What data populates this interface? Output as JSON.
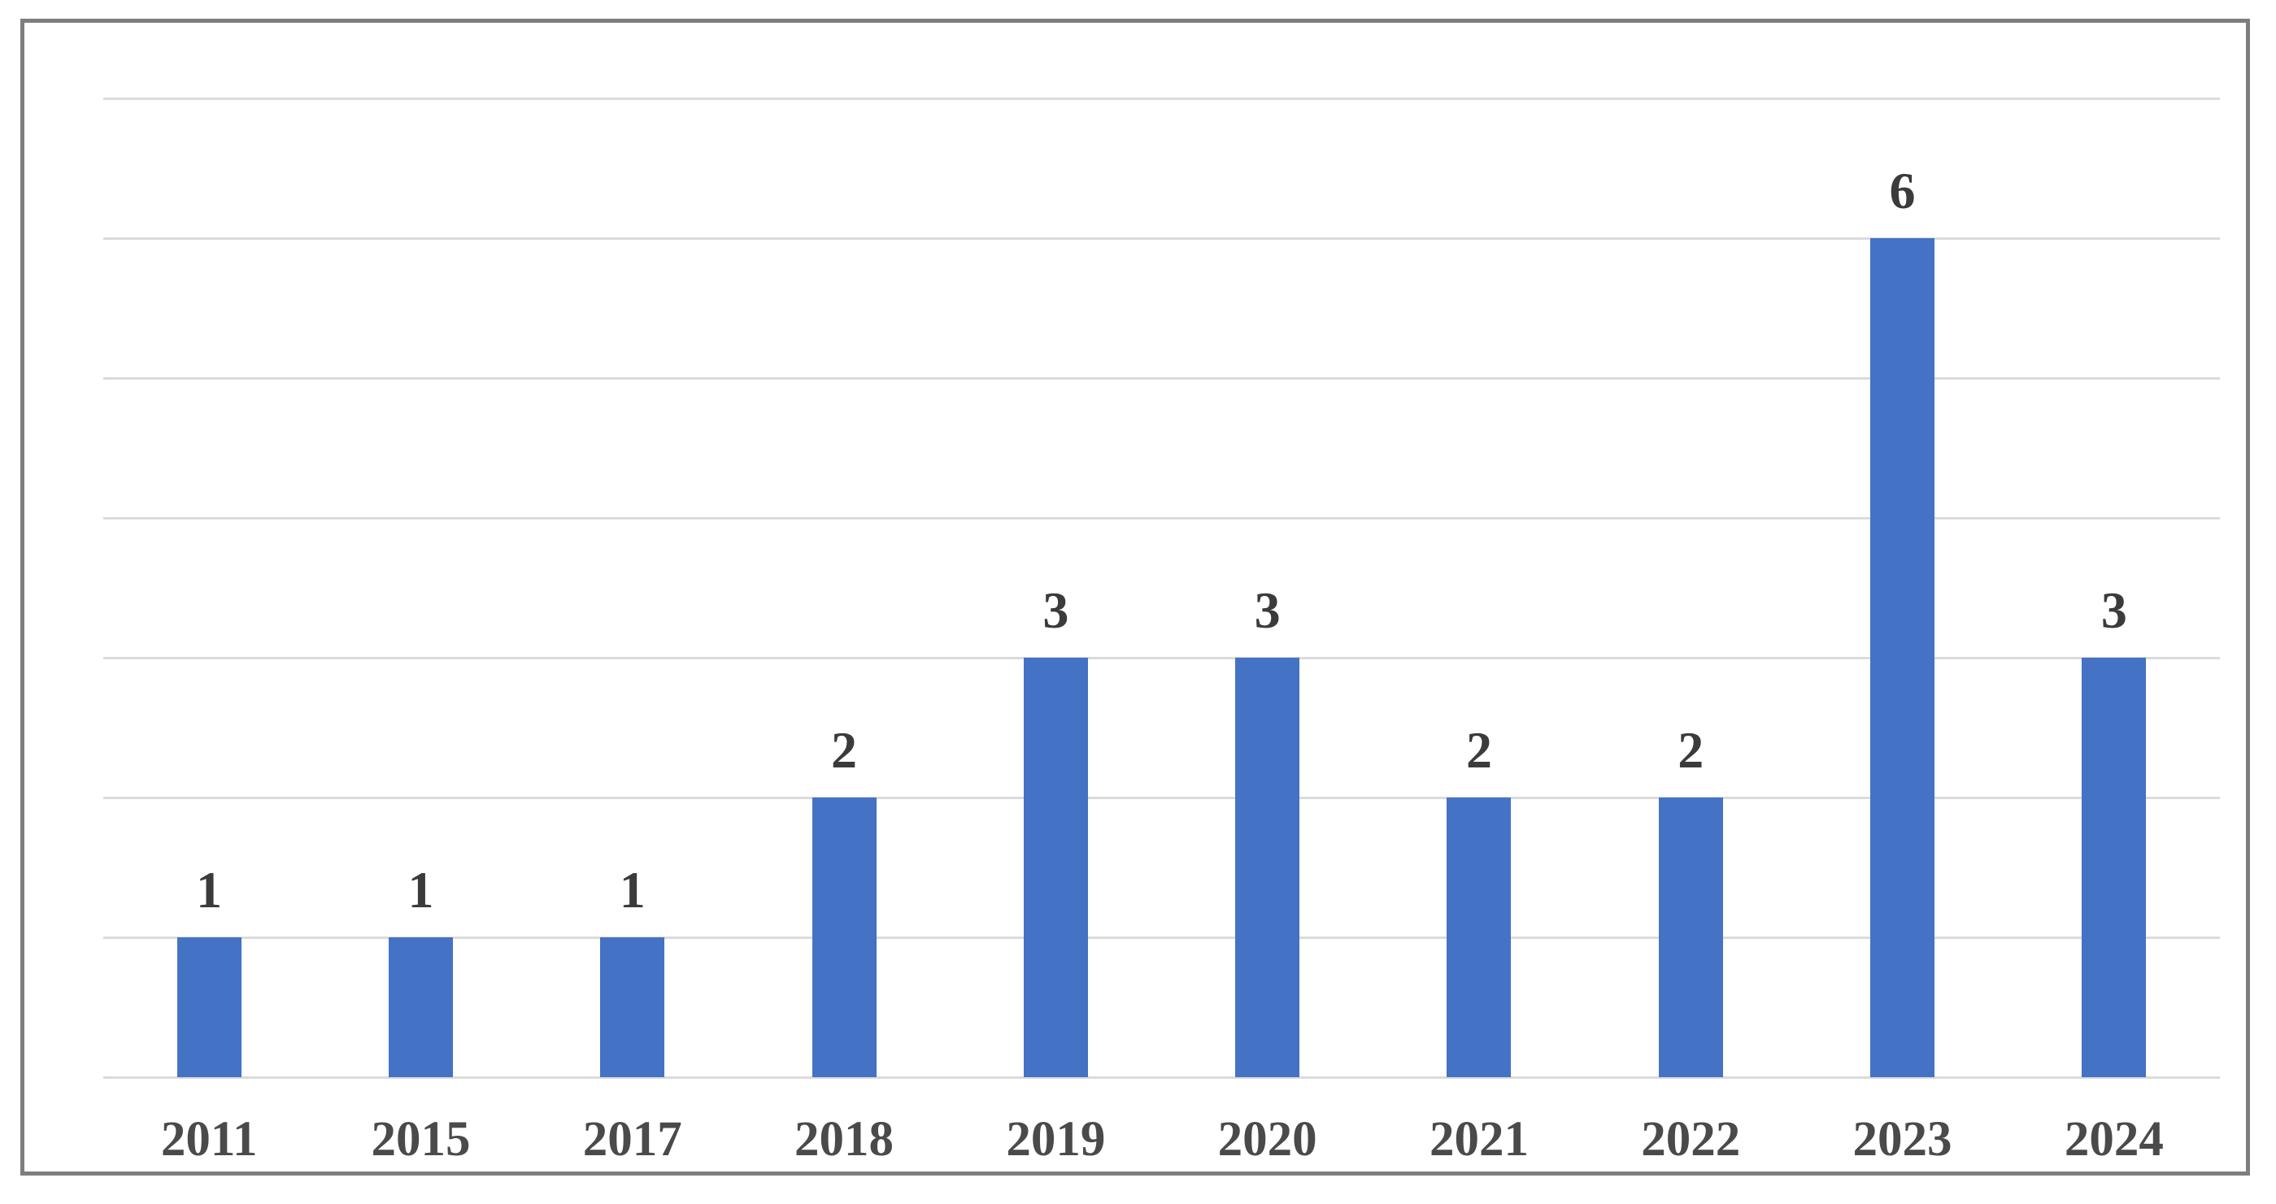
{
  "chart_data": {
    "type": "bar",
    "categories": [
      "2011",
      "2015",
      "2017",
      "2018",
      "2019",
      "2020",
      "2021",
      "2022",
      "2023",
      "2024"
    ],
    "values": [
      1,
      1,
      1,
      2,
      3,
      3,
      2,
      2,
      6,
      3
    ],
    "data_labels": [
      "1",
      "1",
      "1",
      "2",
      "3",
      "3",
      "2",
      "2",
      "6",
      "3"
    ],
    "title": "",
    "xlabel": "",
    "ylabel": "",
    "ylim": [
      0,
      7
    ],
    "gridline_step": 1,
    "grid": "horizontal-only",
    "y_tick_labels_visible": false,
    "legend": "none"
  },
  "colors": {
    "bar_fill": "#4472C4",
    "gridline": "#DBDBDB",
    "frame_border": "#7E7E7E",
    "value_label_text": "#3B3B3B",
    "axis_label_text": "#4A4A4A",
    "background": "#FFFFFF"
  }
}
